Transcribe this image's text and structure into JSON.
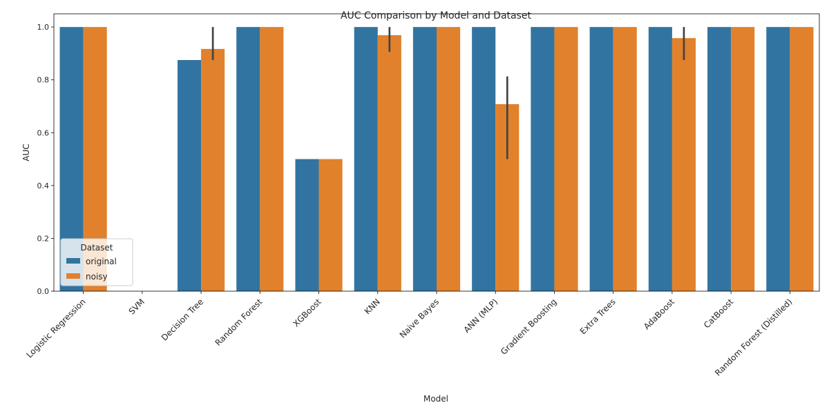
{
  "chart_data": {
    "type": "bar",
    "title": "AUC Comparison by Model and Dataset",
    "xlabel": "Model",
    "ylabel": "AUC",
    "ylim": [
      0,
      1.05
    ],
    "yticks": [
      "0.0",
      "0.2",
      "0.4",
      "0.6",
      "0.8",
      "1.0"
    ],
    "ytick_values": [
      0,
      0.2,
      0.4,
      0.6,
      0.8,
      1.0
    ],
    "grid": false,
    "legend_title": "Dataset",
    "legend_position": "bottom-left",
    "categories": [
      "Logistic Regression",
      "SVM",
      "Decision Tree",
      "Random Forest",
      "XGBoost",
      "KNN",
      "Naive Bayes",
      "ANN (MLP)",
      "Gradient Boosting",
      "Extra Trees",
      "AdaBoost",
      "CatBoost",
      "Random Forest (Distilled)"
    ],
    "series": [
      {
        "name": "original",
        "color": "#3274a1",
        "values": [
          1.0,
          0,
          0.875,
          1.0,
          0.5,
          1.0,
          1.0,
          1.0,
          1.0,
          1.0,
          1.0,
          1.0,
          1.0
        ],
        "error": [
          null,
          null,
          null,
          null,
          null,
          null,
          null,
          null,
          null,
          null,
          null,
          null,
          null
        ]
      },
      {
        "name": "noisy",
        "color": "#e1812c",
        "values": [
          1.0,
          0,
          0.917,
          1.0,
          0.5,
          0.969,
          1.0,
          0.708,
          1.0,
          1.0,
          0.958,
          1.0,
          1.0
        ],
        "error": [
          null,
          null,
          [
            0.875,
            1.0
          ],
          null,
          null,
          [
            0.906,
            1.0
          ],
          null,
          [
            0.5,
            0.813
          ],
          null,
          null,
          [
            0.875,
            1.0
          ],
          null,
          null
        ]
      }
    ]
  }
}
